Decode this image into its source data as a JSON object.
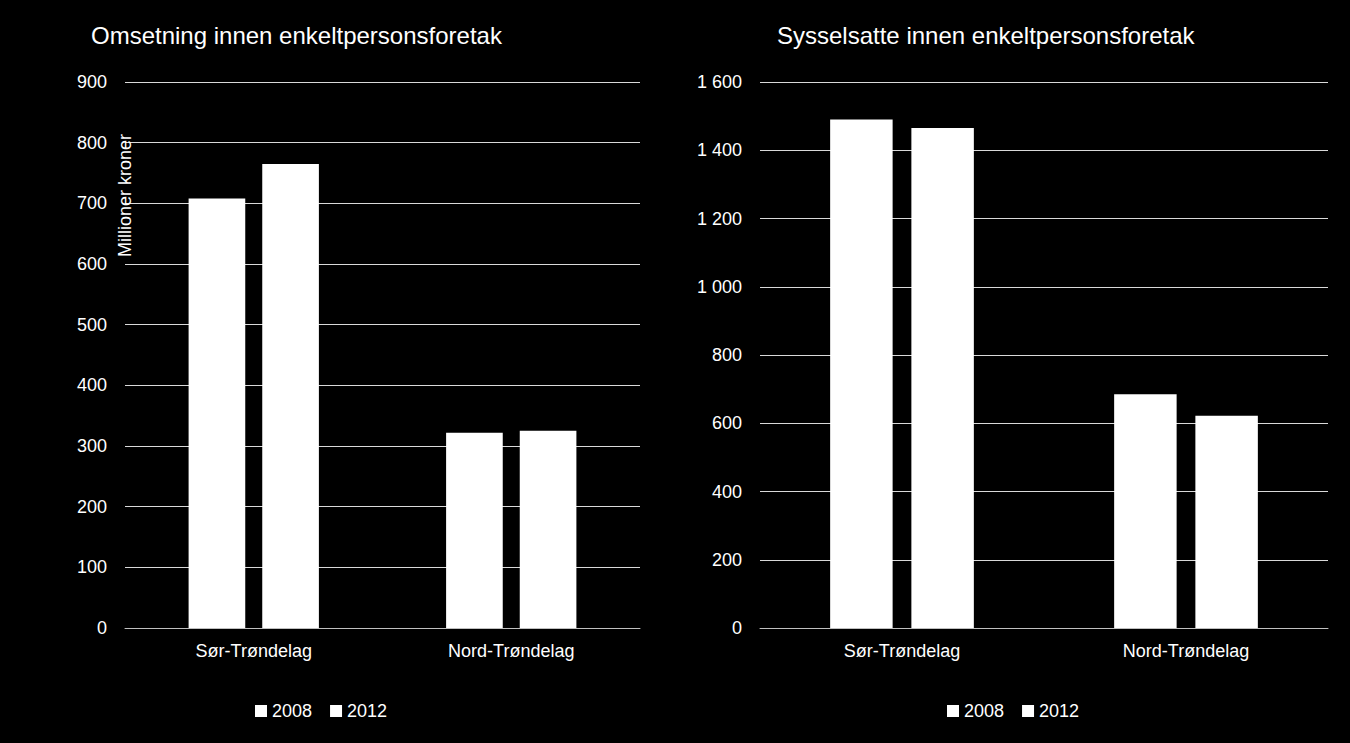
{
  "chart_data": [
    {
      "type": "bar",
      "title": "Omsetning innen enkeltpersonsforetak",
      "y_label": "Millioner kroner",
      "categories": [
        "Sør-Trøndelag",
        "Nord-Trøndelag"
      ],
      "series": [
        {
          "name": "2008",
          "color": "#ffffff",
          "values": [
            708,
            322
          ]
        },
        {
          "name": "2012",
          "color": "#ffffff",
          "values": [
            765,
            325
          ]
        }
      ],
      "ylim": [
        0,
        900
      ],
      "yticks": [
        0,
        100,
        200,
        300,
        400,
        500,
        600,
        700,
        800,
        900
      ],
      "grid": true,
      "legend": "bottom"
    },
    {
      "type": "bar",
      "title": "Sysselsatte innen enkeltpersonsforetak",
      "categories": [
        "Sør-Trøndelag",
        "Nord-Trøndelag"
      ],
      "series": [
        {
          "name": "2008",
          "color": "#ffffff",
          "values": [
            1490,
            685
          ]
        },
        {
          "name": "2012",
          "color": "#ffffff",
          "values": [
            1465,
            622
          ]
        }
      ],
      "ylim": [
        0,
        1600
      ],
      "yticks": [
        0,
        200,
        400,
        600,
        800,
        {
          "value": 1000,
          "label": "1 000"
        },
        {
          "value": 1200,
          "label": "1 200"
        },
        {
          "value": 1400,
          "label": "1 400"
        },
        {
          "value": 1600,
          "label": "1 600"
        }
      ],
      "grid": true,
      "legend": "bottom"
    }
  ]
}
